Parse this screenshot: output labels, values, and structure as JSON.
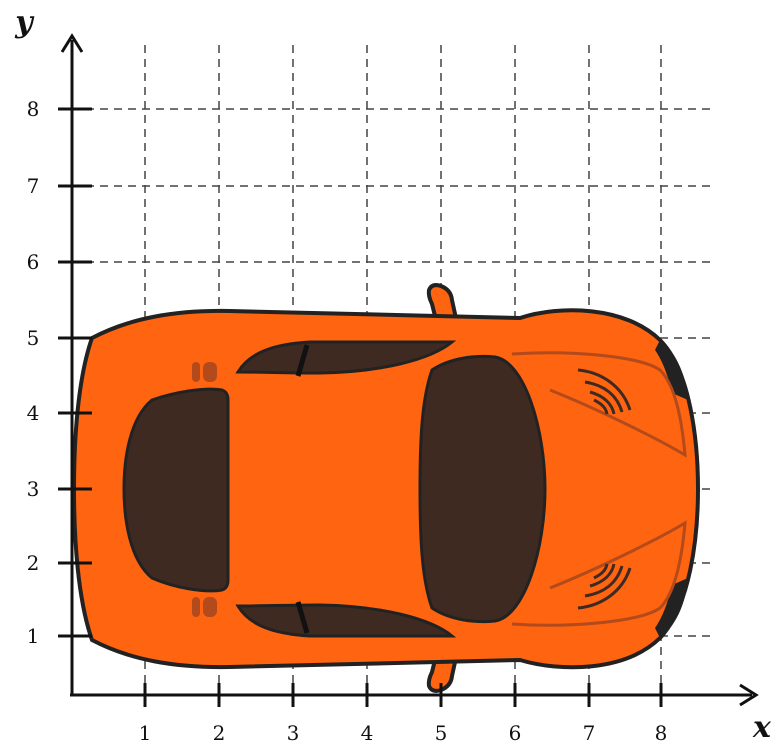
{
  "axes": {
    "x_name": "x",
    "y_name": "y",
    "x_ticks": [
      "1",
      "2",
      "3",
      "4",
      "5",
      "6",
      "7",
      "8"
    ],
    "y_ticks": [
      "1",
      "2",
      "3",
      "4",
      "5",
      "6",
      "7",
      "8"
    ]
  },
  "picture": {
    "body_color": "#FF6410",
    "outline_color": "#222222",
    "glass_color": "#3F2A22",
    "accent_color": "#B24A1C"
  }
}
